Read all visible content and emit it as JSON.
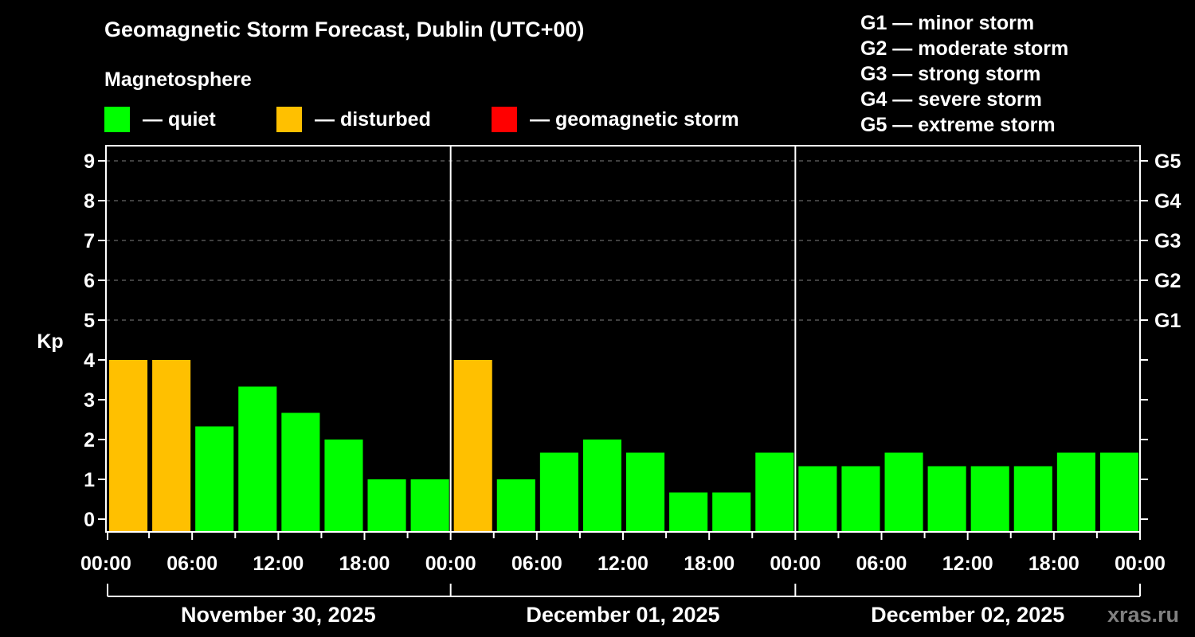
{
  "title": "Geomagnetic Storm Forecast, Dublin (UTC+00)",
  "subtitle": "Magnetosphere",
  "legend": [
    {
      "label": "— quiet",
      "color": "#00ff00"
    },
    {
      "label": "— disturbed",
      "color": "#ffc000"
    },
    {
      "label": "— geomagnetic storm",
      "color": "#ff0000"
    }
  ],
  "g_scale": [
    {
      "label": "G1 — minor storm"
    },
    {
      "label": "G2 — moderate storm"
    },
    {
      "label": "G3 — strong storm"
    },
    {
      "label": "G4 — severe storm"
    },
    {
      "label": "G5 — extreme storm"
    }
  ],
  "watermark": "xras.ru",
  "chart_data": {
    "type": "bar",
    "title": "Geomagnetic Storm Forecast, Dublin (UTC+00)",
    "ylabel": "Kp",
    "ylim": [
      0,
      9
    ],
    "yticks": [
      0,
      1,
      2,
      3,
      4,
      5,
      6,
      7,
      8,
      9
    ],
    "right_ticks": [
      {
        "kp": 5,
        "label": "G1"
      },
      {
        "kp": 6,
        "label": "G2"
      },
      {
        "kp": 7,
        "label": "G3"
      },
      {
        "kp": 8,
        "label": "G4"
      },
      {
        "kp": 9,
        "label": "G5"
      }
    ],
    "grid": "dashed horizontal at Kp 5-9",
    "xtick_labels": [
      "00:00",
      "06:00",
      "12:00",
      "18:00",
      "00:00",
      "06:00",
      "12:00",
      "18:00",
      "00:00",
      "06:00",
      "12:00",
      "18:00",
      "00:00"
    ],
    "days": [
      "November 30, 2025",
      "December 01, 2025",
      "December 02, 2025"
    ],
    "interval_hours": 3,
    "series": [
      {
        "name": "November 30, 2025",
        "values": [
          4,
          4,
          2.33,
          3.33,
          2.67,
          2,
          1,
          1
        ],
        "status": [
          "disturbed",
          "disturbed",
          "quiet",
          "quiet",
          "quiet",
          "quiet",
          "quiet",
          "quiet"
        ]
      },
      {
        "name": "December 01, 2025",
        "values": [
          4,
          1,
          1.67,
          2,
          1.67,
          0.67,
          0.67,
          1.67
        ],
        "status": [
          "disturbed",
          "quiet",
          "quiet",
          "quiet",
          "quiet",
          "quiet",
          "quiet",
          "quiet"
        ]
      },
      {
        "name": "December 02, 2025",
        "values": [
          1.33,
          1.33,
          1.67,
          1.33,
          1.33,
          1.33,
          1.67,
          1.67
        ],
        "status": [
          "quiet",
          "quiet",
          "quiet",
          "quiet",
          "quiet",
          "quiet",
          "quiet",
          "quiet"
        ]
      }
    ],
    "colors": {
      "quiet": "#00ff00",
      "disturbed": "#ffc000",
      "storm": "#ff0000"
    }
  }
}
